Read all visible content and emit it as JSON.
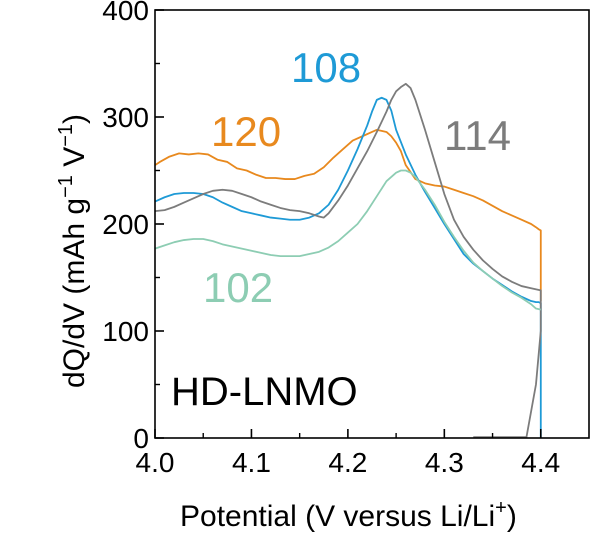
{
  "chart_data": {
    "type": "line",
    "title": "",
    "xlabel_text": "Potential (V versus Li/Li",
    "xlabel_sup": "+",
    "xlabel_close": ")",
    "ylabel_parts": [
      "dQ/dV (mAh g",
      "−1",
      " V",
      "−1",
      ")"
    ],
    "xlim": [
      4.0,
      4.45
    ],
    "ylim": [
      0,
      400
    ],
    "xticks": [
      4.0,
      4.1,
      4.2,
      4.3,
      4.4
    ],
    "xtick_labels": [
      "4.0",
      "4.1",
      "4.2",
      "4.3",
      "4.4"
    ],
    "yticks": [
      0,
      100,
      200,
      300,
      400
    ],
    "ytick_labels": [
      "0",
      "100",
      "200",
      "300",
      "400"
    ],
    "annotation": "HD-LNMO",
    "series": [
      {
        "name": "120",
        "color": "#E8891E",
        "x": [
          4.0,
          4.005,
          4.015,
          4.025,
          4.035,
          4.045,
          4.055,
          4.065,
          4.075,
          4.085,
          4.095,
          4.105,
          4.115,
          4.125,
          4.135,
          4.145,
          4.155,
          4.165,
          4.175,
          4.185,
          4.195,
          4.205,
          4.215,
          4.225,
          4.23,
          4.235,
          4.24,
          4.245,
          4.25,
          4.255,
          4.26,
          4.27,
          4.28,
          4.29,
          4.3,
          4.31,
          4.32,
          4.33,
          4.34,
          4.35,
          4.36,
          4.37,
          4.38,
          4.39,
          4.395,
          4.398,
          4.4,
          4.4,
          4.4
        ],
        "y": [
          255,
          258,
          263,
          266,
          265,
          266,
          265,
          260,
          258,
          252,
          250,
          246,
          243,
          243,
          242,
          242,
          245,
          247,
          253,
          262,
          270,
          278,
          282,
          286,
          288,
          287,
          286,
          282,
          276,
          268,
          255,
          242,
          238,
          236,
          235,
          232,
          229,
          226,
          222,
          217,
          212,
          208,
          204,
          200,
          197,
          195,
          194,
          150,
          128
        ]
      },
      {
        "name": "108",
        "color": "#1E9AD6",
        "x": [
          4.0,
          4.01,
          4.02,
          4.03,
          4.04,
          4.05,
          4.06,
          4.07,
          4.08,
          4.09,
          4.1,
          4.11,
          4.12,
          4.13,
          4.14,
          4.15,
          4.16,
          4.17,
          4.18,
          4.19,
          4.2,
          4.21,
          4.22,
          4.225,
          4.23,
          4.235,
          4.24,
          4.245,
          4.25,
          4.26,
          4.27,
          4.28,
          4.29,
          4.3,
          4.31,
          4.32,
          4.33,
          4.34,
          4.35,
          4.36,
          4.37,
          4.38,
          4.39,
          4.395,
          4.398,
          4.4,
          4.4
        ],
        "y": [
          221,
          225,
          228,
          229,
          229,
          228,
          225,
          220,
          216,
          212,
          210,
          208,
          206,
          205,
          204,
          204,
          206,
          210,
          218,
          232,
          250,
          270,
          292,
          305,
          316,
          318,
          316,
          306,
          288,
          265,
          246,
          230,
          215,
          200,
          186,
          172,
          163,
          156,
          149,
          143,
          137,
          132,
          128,
          127,
          127,
          126,
          0
        ]
      },
      {
        "name": "114",
        "color": "#7C7C7C",
        "x": [
          4.0,
          4.01,
          4.02,
          4.03,
          4.04,
          4.05,
          4.06,
          4.07,
          4.08,
          4.09,
          4.1,
          4.11,
          4.12,
          4.13,
          4.14,
          4.15,
          4.16,
          4.17,
          4.175,
          4.18,
          4.19,
          4.2,
          4.21,
          4.22,
          4.23,
          4.24,
          4.245,
          4.25,
          4.255,
          4.26,
          4.265,
          4.27,
          4.28,
          4.29,
          4.3,
          4.31,
          4.32,
          4.33,
          4.34,
          4.35,
          4.36,
          4.37,
          4.38,
          4.39,
          4.4,
          4.4,
          4.395,
          4.385
        ],
        "y": [
          212,
          213,
          216,
          220,
          224,
          228,
          231,
          232,
          231,
          228,
          225,
          221,
          218,
          215,
          213,
          212,
          210,
          207,
          206,
          210,
          222,
          236,
          252,
          268,
          286,
          305,
          316,
          324,
          328,
          331,
          327,
          316,
          288,
          258,
          228,
          204,
          188,
          176,
          166,
          158,
          151,
          146,
          142,
          140,
          138,
          100,
          50,
          0
        ]
      },
      {
        "name": "102",
        "color": "#8DCDB3",
        "x": [
          4.0,
          4.01,
          4.02,
          4.03,
          4.04,
          4.05,
          4.06,
          4.07,
          4.08,
          4.09,
          4.1,
          4.11,
          4.12,
          4.13,
          4.14,
          4.15,
          4.16,
          4.17,
          4.18,
          4.19,
          4.2,
          4.21,
          4.22,
          4.23,
          4.24,
          4.25,
          4.255,
          4.26,
          4.265,
          4.27,
          4.28,
          4.29,
          4.3,
          4.31,
          4.32,
          4.33,
          4.34,
          4.35,
          4.36,
          4.37,
          4.38,
          4.39,
          4.395,
          4.4
        ],
        "y": [
          177,
          180,
          183,
          185,
          186,
          186,
          184,
          181,
          179,
          177,
          175,
          173,
          171,
          170,
          170,
          170,
          172,
          174,
          178,
          184,
          192,
          200,
          212,
          226,
          240,
          248,
          250,
          250,
          248,
          244,
          232,
          218,
          202,
          188,
          175,
          164,
          156,
          149,
          142,
          136,
          131,
          125,
          121,
          120
        ]
      }
    ],
    "gray_tail": [
      {
        "x": 4.33,
        "y": 0
      },
      {
        "x": 4.385,
        "y": 0
      }
    ]
  }
}
